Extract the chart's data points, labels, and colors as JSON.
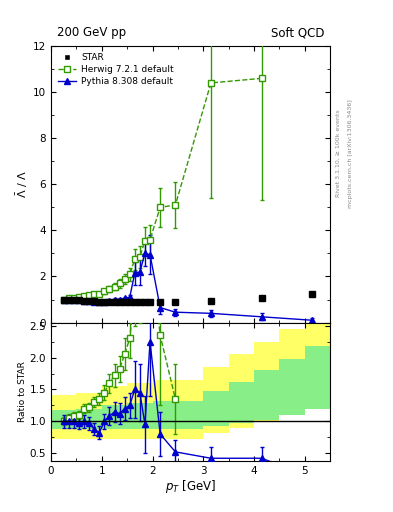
{
  "title_left": "200 GeV pp",
  "title_right": "Soft QCD",
  "ylabel_main": "$\\bar{\\Lambda}$ / $\\Lambda$",
  "ylabel_ratio": "Ratio to STAR",
  "xlabel": "$p_T$ [GeV]",
  "right_label1": "Rivet 3.1.10, ≥ 100k events",
  "right_label2": "mcplots.cern.ch [arXiv:1306.3436]",
  "star_x": [
    0.25,
    0.35,
    0.45,
    0.55,
    0.65,
    0.75,
    0.85,
    0.95,
    1.05,
    1.15,
    1.25,
    1.35,
    1.45,
    1.55,
    1.65,
    1.75,
    1.85,
    1.95,
    2.15,
    2.45,
    3.15,
    4.15,
    5.15
  ],
  "star_y": [
    1.0,
    1.0,
    1.0,
    1.0,
    0.95,
    0.95,
    0.92,
    0.9,
    0.9,
    0.88,
    0.88,
    0.88,
    0.88,
    0.88,
    0.88,
    0.88,
    0.88,
    0.88,
    0.88,
    0.88,
    0.95,
    1.05,
    1.25
  ],
  "star_yerr": [
    0.04,
    0.04,
    0.04,
    0.04,
    0.04,
    0.04,
    0.04,
    0.04,
    0.04,
    0.04,
    0.04,
    0.04,
    0.04,
    0.04,
    0.04,
    0.04,
    0.04,
    0.04,
    0.04,
    0.04,
    0.05,
    0.06,
    0.08
  ],
  "herwig_x": [
    0.25,
    0.35,
    0.45,
    0.55,
    0.65,
    0.75,
    0.85,
    0.95,
    1.05,
    1.15,
    1.25,
    1.35,
    1.45,
    1.55,
    1.65,
    1.75,
    1.85,
    1.95,
    2.15,
    2.45,
    3.15,
    4.15
  ],
  "herwig_y": [
    1.0,
    1.05,
    1.08,
    1.1,
    1.15,
    1.18,
    1.22,
    1.25,
    1.35,
    1.45,
    1.55,
    1.7,
    1.9,
    2.1,
    2.75,
    2.85,
    3.55,
    3.6,
    5.0,
    5.1,
    10.4,
    10.6
  ],
  "herwig_yerr_lo": [
    0.05,
    0.05,
    0.05,
    0.05,
    0.05,
    0.05,
    0.05,
    0.08,
    0.1,
    0.12,
    0.15,
    0.18,
    0.22,
    0.28,
    0.45,
    0.48,
    0.6,
    0.65,
    0.85,
    1.0,
    5.0,
    5.3
  ],
  "herwig_yerr_hi": [
    0.05,
    0.05,
    0.05,
    0.05,
    0.05,
    0.05,
    0.05,
    0.08,
    0.1,
    0.12,
    0.15,
    0.18,
    0.22,
    0.28,
    0.45,
    0.48,
    0.6,
    0.65,
    0.85,
    1.0,
    5.0,
    5.3
  ],
  "pythia_x": [
    0.25,
    0.35,
    0.45,
    0.55,
    0.65,
    0.75,
    0.85,
    0.95,
    1.05,
    1.15,
    1.25,
    1.35,
    1.45,
    1.55,
    1.65,
    1.75,
    1.85,
    1.95,
    2.15,
    2.45,
    3.15,
    4.15,
    5.15
  ],
  "pythia_y": [
    1.0,
    1.0,
    1.0,
    0.98,
    0.95,
    0.93,
    0.9,
    0.88,
    0.9,
    0.95,
    1.0,
    1.0,
    1.05,
    1.1,
    2.15,
    2.2,
    3.0,
    2.95,
    0.65,
    0.45,
    0.4,
    0.25,
    0.1
  ],
  "pythia_yerr_lo": [
    0.04,
    0.04,
    0.04,
    0.04,
    0.04,
    0.04,
    0.04,
    0.04,
    0.05,
    0.06,
    0.07,
    0.07,
    0.08,
    0.1,
    0.5,
    0.55,
    0.55,
    0.85,
    0.3,
    0.15,
    0.15,
    0.15,
    0.08
  ],
  "pythia_yerr_hi": [
    0.04,
    0.04,
    0.04,
    0.04,
    0.04,
    0.04,
    0.04,
    0.04,
    0.05,
    0.06,
    0.07,
    0.07,
    0.08,
    0.1,
    0.5,
    0.55,
    0.55,
    0.85,
    0.3,
    0.15,
    0.15,
    0.15,
    0.08
  ],
  "ratio_herwig_x": [
    0.25,
    0.35,
    0.45,
    0.55,
    0.65,
    0.75,
    0.85,
    0.95,
    1.05,
    1.15,
    1.25,
    1.35,
    1.45,
    1.55,
    1.65,
    1.75,
    1.85,
    1.95,
    2.15,
    2.45
  ],
  "ratio_herwig_y": [
    1.0,
    1.05,
    1.08,
    1.1,
    1.2,
    1.22,
    1.3,
    1.35,
    1.45,
    1.6,
    1.72,
    1.82,
    2.05,
    2.3,
    3.05,
    3.15,
    3.85,
    3.9,
    2.35,
    1.35
  ],
  "ratio_herwig_yerr": [
    0.06,
    0.06,
    0.06,
    0.06,
    0.07,
    0.07,
    0.08,
    0.1,
    0.12,
    0.15,
    0.18,
    0.2,
    0.25,
    0.3,
    0.55,
    0.6,
    0.7,
    0.75,
    1.1,
    0.55
  ],
  "ratio_pythia_x": [
    0.25,
    0.35,
    0.45,
    0.55,
    0.65,
    0.75,
    0.85,
    0.95,
    1.05,
    1.15,
    1.25,
    1.35,
    1.45,
    1.55,
    1.65,
    1.75,
    1.85,
    1.95,
    2.15,
    2.45,
    3.15,
    4.15,
    5.15
  ],
  "ratio_pythia_y": [
    1.0,
    1.0,
    1.0,
    0.98,
    1.0,
    0.97,
    0.88,
    0.82,
    1.0,
    1.08,
    1.15,
    1.12,
    1.2,
    1.25,
    1.5,
    1.45,
    0.95,
    2.25,
    0.8,
    0.52,
    0.42,
    0.42,
    0.12
  ],
  "ratio_pythia_yerr_lo": [
    0.1,
    0.1,
    0.1,
    0.1,
    0.1,
    0.1,
    0.1,
    0.1,
    0.12,
    0.14,
    0.16,
    0.16,
    0.18,
    0.2,
    0.45,
    0.45,
    0.45,
    0.85,
    0.35,
    0.18,
    0.18,
    0.18,
    0.08
  ],
  "ratio_pythia_yerr_hi": [
    0.1,
    0.1,
    0.1,
    0.1,
    0.1,
    0.1,
    0.1,
    0.1,
    0.12,
    0.14,
    0.16,
    0.16,
    0.18,
    0.2,
    0.45,
    0.45,
    0.45,
    0.85,
    0.35,
    0.18,
    0.18,
    0.18,
    0.08
  ],
  "band_yellow_edges": [
    0.0,
    0.5,
    1.0,
    1.5,
    2.0,
    3.0,
    3.5,
    4.0,
    4.5,
    5.0,
    5.5
  ],
  "band_yellow_lo": [
    0.72,
    0.72,
    0.72,
    0.72,
    0.72,
    0.82,
    0.9,
    1.0,
    1.1,
    1.2
  ],
  "band_yellow_hi": [
    1.42,
    1.45,
    1.55,
    1.6,
    1.65,
    1.85,
    2.05,
    2.25,
    2.45,
    2.65
  ],
  "band_green_edges": [
    0.0,
    0.5,
    1.0,
    1.5,
    2.0,
    3.0,
    3.5,
    4.0,
    4.5,
    5.0,
    5.5
  ],
  "band_green_lo": [
    0.88,
    0.88,
    0.88,
    0.88,
    0.88,
    0.92,
    0.97,
    1.02,
    1.1,
    1.2
  ],
  "band_green_hi": [
    1.18,
    1.2,
    1.25,
    1.28,
    1.32,
    1.48,
    1.62,
    1.8,
    1.98,
    2.18
  ],
  "star_color": "#000000",
  "herwig_color": "#339900",
  "pythia_color": "#0000cc",
  "band_yellow_color": "#ffff66",
  "band_green_color": "#88ee88",
  "xlim": [
    0,
    5.5
  ],
  "ylim_main": [
    0,
    12
  ],
  "ylim_ratio": [
    0.38,
    2.55
  ],
  "yticks_main": [
    0,
    2,
    4,
    6,
    8,
    10,
    12
  ],
  "yticks_ratio": [
    0.5,
    1.0,
    1.5,
    2.0,
    2.5
  ]
}
